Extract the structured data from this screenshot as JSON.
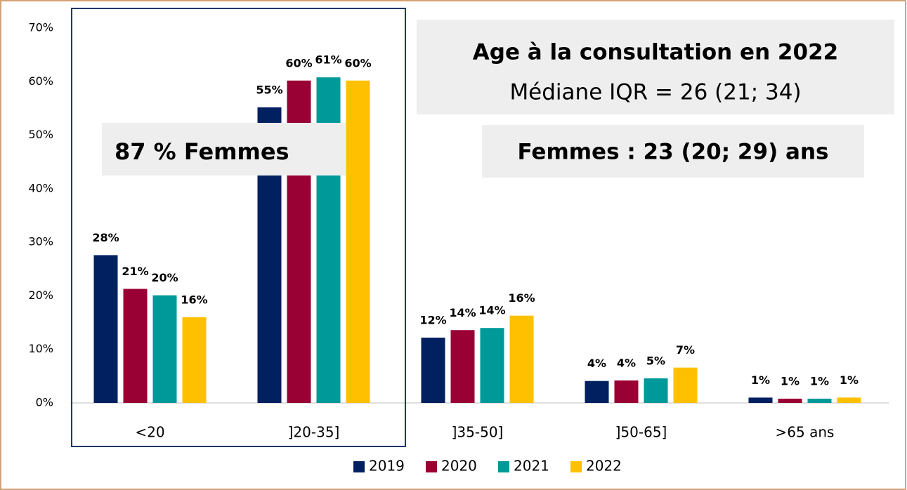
{
  "chart_data": {
    "type": "bar",
    "categories": [
      "<20",
      "]20-35]",
      "]35-50]",
      "]50-65]",
      ">65 ans"
    ],
    "series": [
      {
        "name": "2019",
        "color": "#002060",
        "values": [
          27.6,
          55.2,
          12.2,
          4.1,
          1.0
        ],
        "value_labels": [
          "28%",
          "55%",
          "12%",
          "4%",
          "1%"
        ]
      },
      {
        "name": "2020",
        "color": "#990033",
        "values": [
          21.3,
          60.2,
          13.6,
          4.2,
          0.8
        ],
        "value_labels": [
          "21%",
          "60%",
          "14%",
          "4%",
          "1%"
        ]
      },
      {
        "name": "2021",
        "color": "#009999",
        "values": [
          20.1,
          60.8,
          14.0,
          4.6,
          0.8
        ],
        "value_labels": [
          "20%",
          "61%",
          "14%",
          "5%",
          "1%"
        ]
      },
      {
        "name": "2022",
        "color": "#ffc000",
        "values": [
          16.0,
          60.2,
          16.3,
          6.6,
          1.0
        ],
        "value_labels": [
          "16%",
          "60%",
          "16%",
          "7%",
          "1%"
        ]
      }
    ],
    "ylim": [
      0,
      70
    ],
    "yticks": [
      {
        "value": 0,
        "label": "0%"
      },
      {
        "value": 10,
        "label": "10%"
      },
      {
        "value": 20,
        "label": "20%"
      },
      {
        "value": 30,
        "label": "30%"
      },
      {
        "value": 40,
        "label": "40%"
      },
      {
        "value": 50,
        "label": "50%"
      },
      {
        "value": 60,
        "label": "60%"
      },
      {
        "value": 70,
        "label": "70%"
      }
    ],
    "grid": false,
    "legend": "bottom",
    "annotations": [
      "Age à la consultation en 2022",
      "Médiane IQR = 26 (21; 34)",
      "87 % Femmes",
      "Femmes : 23 (20; 29) ans"
    ]
  }
}
